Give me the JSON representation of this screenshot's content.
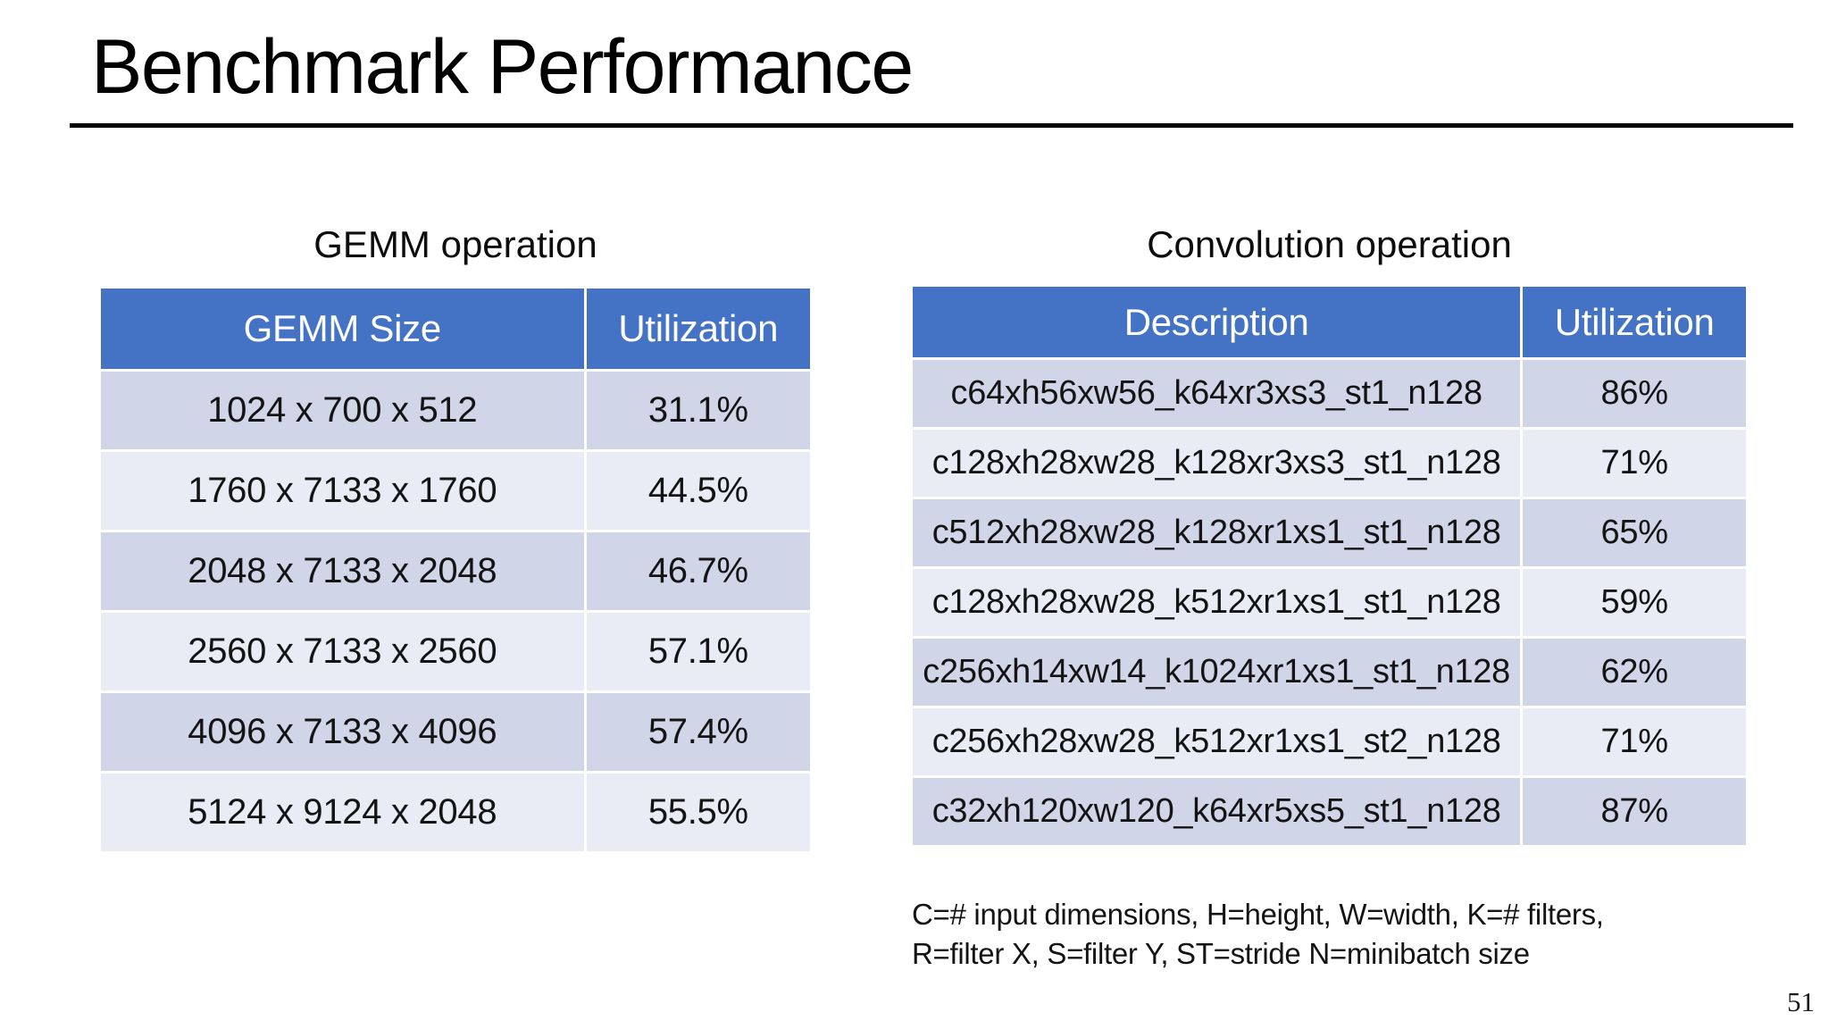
{
  "slide": {
    "title": "Benchmark Performance",
    "page_number": "51",
    "colors": {
      "header_bg": "#4472C4",
      "row_dark": "#D0D5E8",
      "row_light": "#E9EBF5",
      "header_text": "#FFFFFF",
      "body_text": "#141414"
    }
  },
  "gemm_table": {
    "caption": "GEMM operation",
    "columns": [
      "GEMM Size",
      "Utilization"
    ],
    "rows": [
      [
        "1024 x 700 x 512",
        "31.1%"
      ],
      [
        "1760 x 7133 x 1760",
        "44.5%"
      ],
      [
        "2048 x 7133 x 2048",
        "46.7%"
      ],
      [
        "2560 x 7133 x 2560",
        "57.1%"
      ],
      [
        "4096 x 7133 x 4096",
        "57.4%"
      ],
      [
        "5124 x 9124 x 2048",
        "55.5%"
      ]
    ]
  },
  "conv_table": {
    "caption": "Convolution operation",
    "columns": [
      "Description",
      "Utilization"
    ],
    "rows": [
      [
        "c64xh56xw56_k64xr3xs3_st1_n128",
        "86%"
      ],
      [
        "c128xh28xw28_k128xr3xs3_st1_n128",
        "71%"
      ],
      [
        "c512xh28xw28_k128xr1xs1_st1_n128",
        "65%"
      ],
      [
        "c128xh28xw28_k512xr1xs1_st1_n128",
        "59%"
      ],
      [
        "c256xh14xw14_k1024xr1xs1_st1_n128",
        "62%"
      ],
      [
        "c256xh28xw28_k512xr1xs1_st2_n128",
        "71%"
      ],
      [
        "c32xh120xw120_k64xr5xs5_st1_n128",
        "87%"
      ]
    ]
  },
  "footnote": {
    "line1": "C=# input dimensions, H=height, W=width, K=# filters,",
    "line2": "R=filter X, S=filter Y, ST=stride N=minibatch size"
  }
}
